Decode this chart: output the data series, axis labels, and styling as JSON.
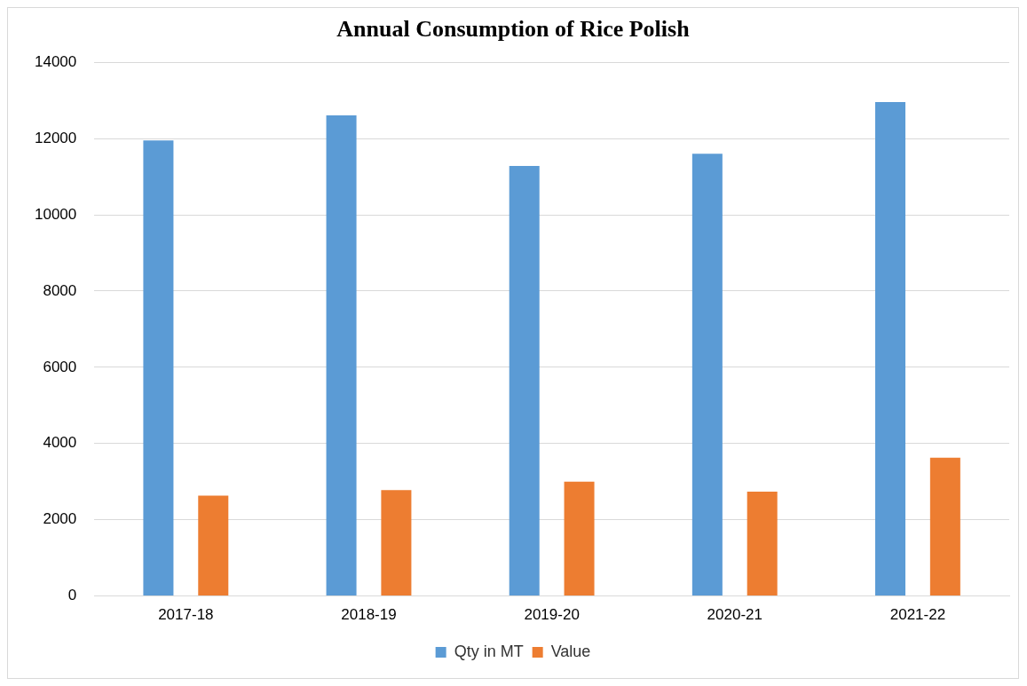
{
  "chart_data": {
    "type": "bar",
    "title": "Annual Consumption of Rice Polish",
    "categories": [
      "2017-18",
      "2018-19",
      "2019-20",
      "2020-21",
      "2021-22"
    ],
    "series": [
      {
        "name": "Qty in MT",
        "color": "#5b9bd5",
        "values": [
          11950,
          12610,
          11280,
          11600,
          12960
        ]
      },
      {
        "name": "Value",
        "color": "#ed7d31",
        "values": [
          2630,
          2780,
          3000,
          2740,
          3630
        ]
      }
    ],
    "ylim": [
      0,
      14000
    ],
    "yticks": [
      0,
      2000,
      4000,
      6000,
      8000,
      10000,
      12000,
      14000
    ],
    "grid": "y",
    "legend": "bottom"
  }
}
